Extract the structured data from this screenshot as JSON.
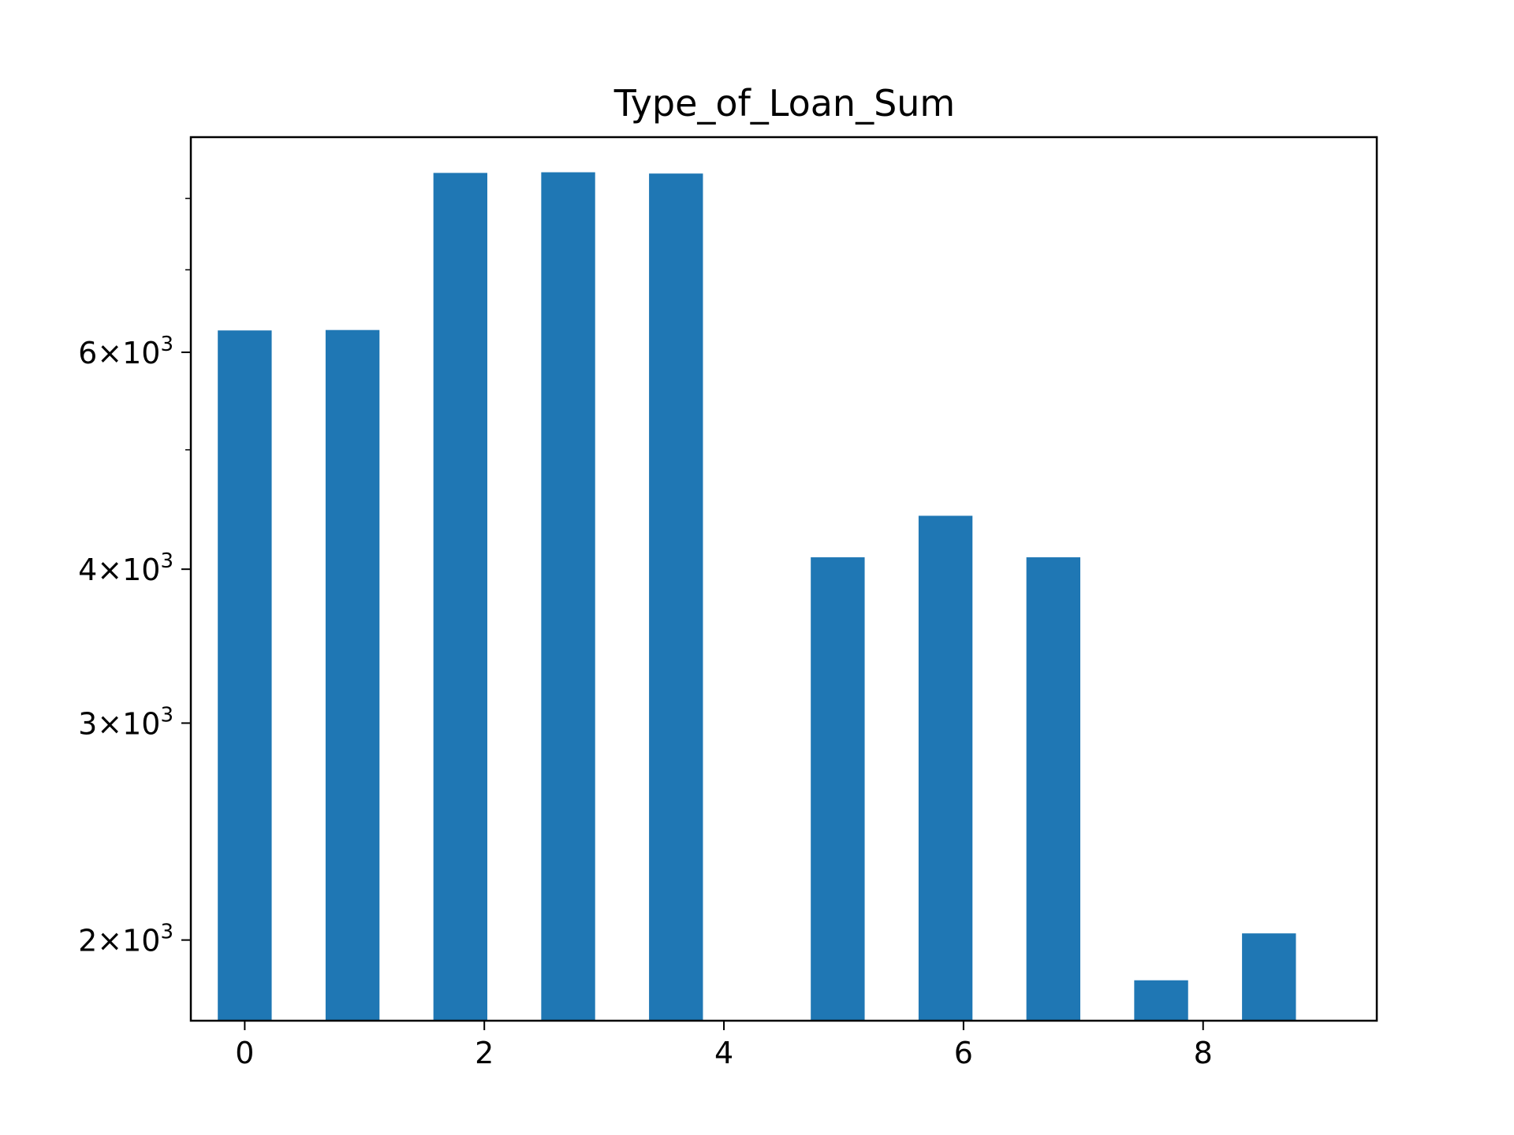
{
  "chart_data": {
    "type": "bar",
    "title": "Type_of_Loan_Sum",
    "xlabel": "",
    "ylabel": "",
    "yscale": "log",
    "x": [
      0,
      1,
      2,
      3,
      4,
      5.5,
      6.5,
      7.5,
      8.5,
      9.5
    ],
    "values": [
      6250,
      6255,
      8390,
      8400,
      8380,
      4090,
      4420,
      4090,
      1855,
      2025
    ],
    "bar_width": 0.5,
    "xlim": [
      -0.5,
      10.5
    ],
    "ylim": [
      1720,
      8970
    ],
    "x_ticks": [
      {
        "value": 0,
        "label": "0"
      },
      {
        "value": 2.2222,
        "label": "2"
      },
      {
        "value": 4.4444,
        "label": "4"
      },
      {
        "value": 6.6667,
        "label": "6"
      },
      {
        "value": 8.8889,
        "label": "8"
      }
    ],
    "y_major_ticks": [
      {
        "value": 2000,
        "mantissa": "2",
        "exponent": "3"
      },
      {
        "value": 3000,
        "mantissa": "3",
        "exponent": "3"
      },
      {
        "value": 4000,
        "mantissa": "4",
        "exponent": "3"
      },
      {
        "value": 6000,
        "mantissa": "6",
        "exponent": "3"
      }
    ],
    "y_minor_ticks": [
      5000,
      7000,
      8000,
      9000
    ],
    "bar_color": "#1f77b4",
    "grid": false,
    "legend": "none"
  }
}
